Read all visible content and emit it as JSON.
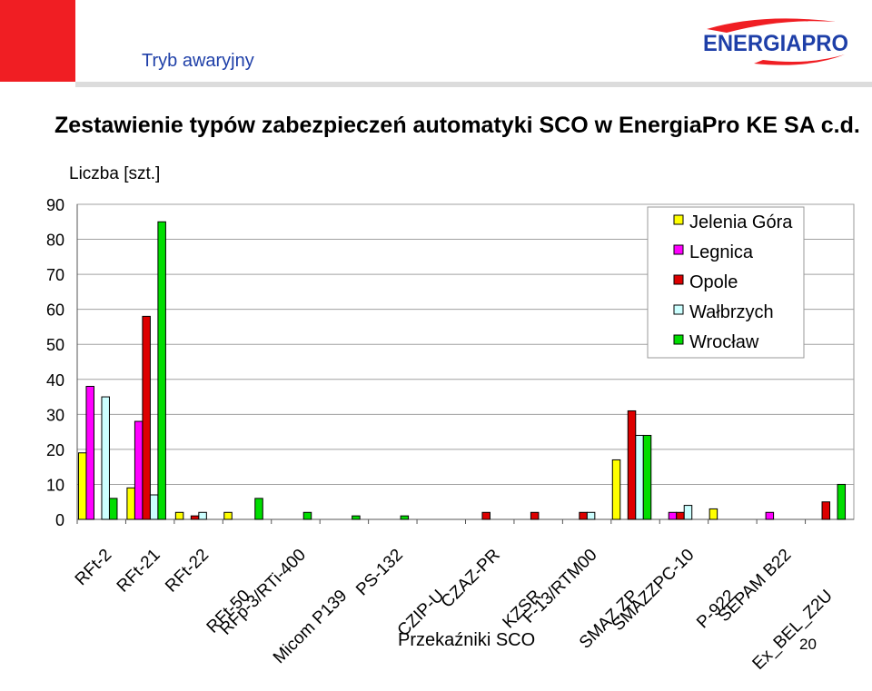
{
  "slide": {
    "subtitle": "Tryb awaryjny",
    "title": "Zestawienie typów zabezpieczeń automatyki SCO w EnergiaPro KE SA  c.d.",
    "page_number": "20",
    "logo_text": "ENERGIAPRO",
    "brand_red": "#f01e23",
    "brand_blue": "#1e3fa8"
  },
  "chart_data": {
    "type": "bar",
    "title": "",
    "ylabel": "Liczba [szt.]",
    "xlabel": "Przekaźniki SCO",
    "ylim": [
      0,
      90
    ],
    "yticks": [
      0,
      10,
      20,
      30,
      40,
      50,
      60,
      70,
      80,
      90
    ],
    "grid": true,
    "legend_position": "top-right",
    "categories": [
      "RFt-2",
      "RFt-21",
      "RFt-22",
      "RFt-50",
      "RFp-3/RTi-400",
      "Micom P139",
      "PS-132",
      "CZIP-U",
      "CZAZ-PR",
      "KZSR",
      "F-13/RTM00",
      "SMAZ ZP",
      "SMAZZPC-10",
      "P-922",
      "SEPAM B22",
      "Ex_BEL_Z2U"
    ],
    "series": [
      {
        "name": "Jelenia Góra",
        "color": "#ffff00",
        "values": [
          19,
          9,
          2,
          2,
          0,
          0,
          0,
          0,
          0,
          0,
          0,
          17,
          0,
          3,
          0,
          0
        ]
      },
      {
        "name": "Legnica",
        "color": "#ff00ff",
        "values": [
          38,
          28,
          0,
          0,
          0,
          0,
          0,
          0,
          0,
          0,
          0,
          0,
          2,
          0,
          2,
          0
        ]
      },
      {
        "name": "Opole",
        "color": "#dd0000",
        "values": [
          0,
          58,
          1,
          0,
          0,
          0,
          0,
          0,
          2,
          2,
          2,
          31,
          2,
          0,
          0,
          5
        ]
      },
      {
        "name": "Wałbrzych",
        "color": "#ccffff",
        "values": [
          35,
          7,
          2,
          0,
          0,
          0,
          0,
          0,
          0,
          0,
          2,
          24,
          4,
          0,
          0,
          0
        ]
      },
      {
        "name": "Wrocław",
        "color": "#00dd00",
        "values": [
          6,
          85,
          0,
          6,
          2,
          1,
          1,
          0,
          0,
          0,
          0,
          24,
          0,
          0,
          0,
          10
        ]
      }
    ]
  }
}
